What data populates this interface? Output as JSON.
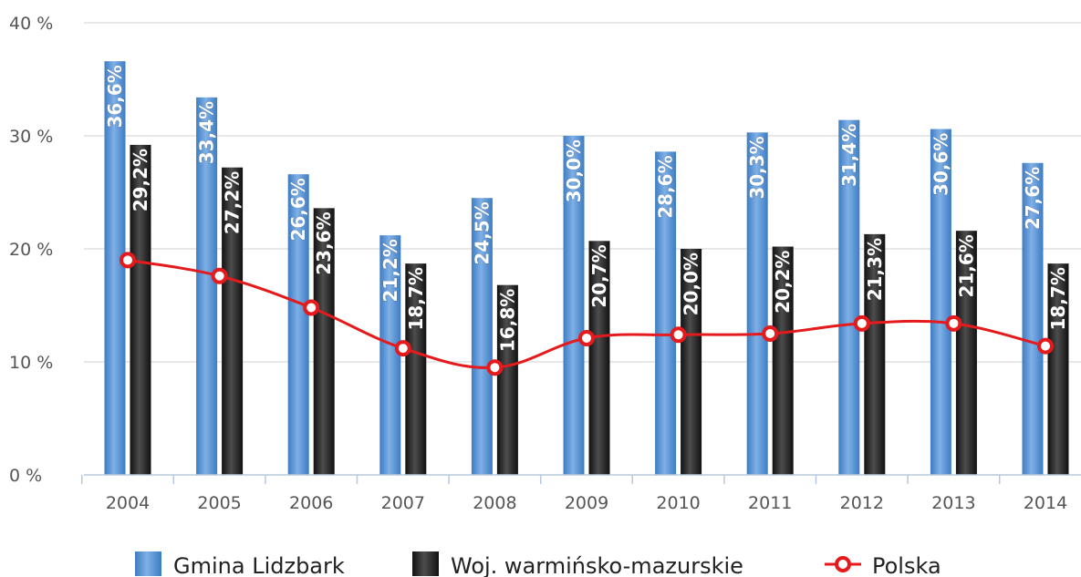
{
  "colors": {
    "gmina": "#3d7cc2",
    "gmina_light": "#7fb0e6",
    "woj": "#111111",
    "woj_light": "#4d4d4d",
    "polska": "#e41a1c",
    "grid": "#d9d9d9",
    "axis": "#b7c9dc",
    "tick_text": "#555555"
  },
  "legend": {
    "gmina_label": "Gmina Lidzbark",
    "woj_label": "Woj. warmińsko-mazurskie",
    "polska_label": "Polska"
  },
  "chart_data": {
    "type": "bar",
    "categories": [
      "2004",
      "2005",
      "2006",
      "2007",
      "2008",
      "2009",
      "2010",
      "2011",
      "2012",
      "2013",
      "2014"
    ],
    "ylim": [
      0,
      40
    ],
    "yticks": [
      0,
      10,
      20,
      30,
      40
    ],
    "ytick_labels": [
      "0 %",
      "10 %",
      "20 %",
      "30 %",
      "40 %"
    ],
    "grid": true,
    "legend_position": "bottom",
    "series": [
      {
        "name": "Gmina Lidzbark",
        "type": "bar",
        "values": [
          36.6,
          33.4,
          26.6,
          21.2,
          24.5,
          30.0,
          28.6,
          30.3,
          31.4,
          30.6,
          27.6
        ],
        "labels": [
          "36,6%",
          "33,4%",
          "26,6%",
          "21,2%",
          "24,5%",
          "30,0%",
          "28,6%",
          "30,3%",
          "31,4%",
          "30,6%",
          "27,6%"
        ]
      },
      {
        "name": "Woj. warmińsko-mazurskie",
        "type": "bar",
        "values": [
          29.2,
          27.2,
          23.6,
          18.7,
          16.8,
          20.7,
          20.0,
          20.2,
          21.3,
          21.6,
          18.7
        ],
        "labels": [
          "29,2%",
          "27,2%",
          "23,6%",
          "18,7%",
          "16,8%",
          "20,7%",
          "20,0%",
          "20,2%",
          "21,3%",
          "21,6%",
          "18,7%"
        ]
      },
      {
        "name": "Polska",
        "type": "line",
        "values": [
          19.0,
          17.6,
          14.8,
          11.2,
          9.5,
          12.1,
          12.4,
          12.5,
          13.4,
          13.4,
          11.4
        ]
      }
    ]
  }
}
